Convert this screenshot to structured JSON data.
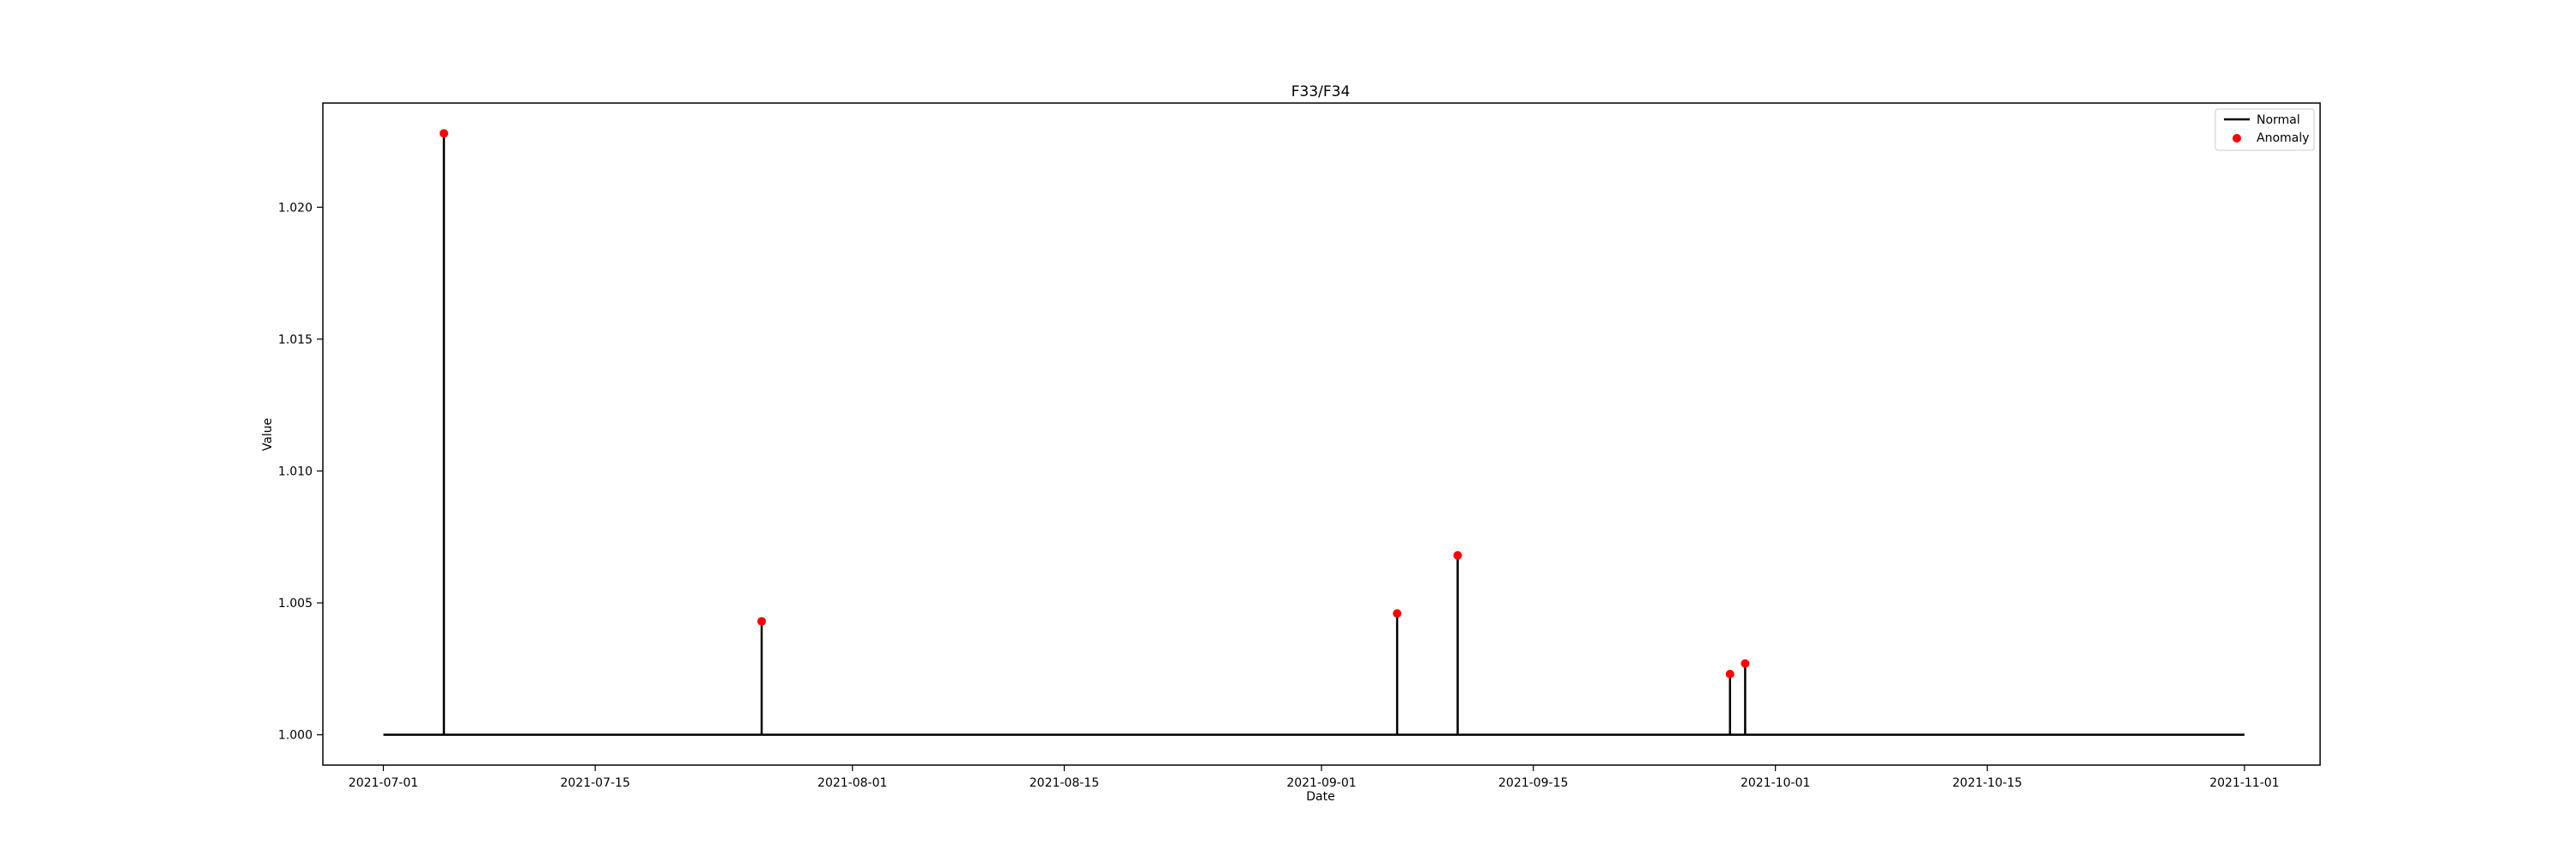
{
  "chart_data": {
    "type": "line",
    "title": "F33/F34",
    "xlabel": "Date",
    "ylabel": "Value",
    "x_range": [
      "2021-06-27",
      "2021-11-06"
    ],
    "ylim": [
      0.99885,
      1.02395
    ],
    "x_ticks": [
      "2021-07-01",
      "2021-07-15",
      "2021-08-01",
      "2021-08-15",
      "2021-09-01",
      "2021-09-15",
      "2021-10-01",
      "2021-10-15",
      "2021-11-01"
    ],
    "y_ticks": [
      1.0,
      1.005,
      1.01,
      1.015,
      1.02
    ],
    "y_tick_labels": [
      "1.000",
      "1.005",
      "1.010",
      "1.015",
      "1.020"
    ],
    "baseline": 1.0,
    "series": [
      {
        "name": "Normal",
        "kind": "line",
        "color": "#000000",
        "points": [
          {
            "x": "2021-07-01",
            "y": 1.0
          },
          {
            "x": "2021-07-05",
            "y": 1.0
          },
          {
            "x": "2021-07-05",
            "y": 1.0228
          },
          {
            "x": "2021-07-05",
            "y": 1.0
          },
          {
            "x": "2021-07-26",
            "y": 1.0
          },
          {
            "x": "2021-07-26",
            "y": 1.0043
          },
          {
            "x": "2021-07-26",
            "y": 1.0
          },
          {
            "x": "2021-09-06",
            "y": 1.0
          },
          {
            "x": "2021-09-06",
            "y": 1.0046
          },
          {
            "x": "2021-09-06",
            "y": 1.0
          },
          {
            "x": "2021-09-10",
            "y": 1.0
          },
          {
            "x": "2021-09-10",
            "y": 1.0068
          },
          {
            "x": "2021-09-10",
            "y": 1.0
          },
          {
            "x": "2021-09-28",
            "y": 1.0
          },
          {
            "x": "2021-09-28",
            "y": 1.0023
          },
          {
            "x": "2021-09-28",
            "y": 1.0
          },
          {
            "x": "2021-09-29",
            "y": 1.0
          },
          {
            "x": "2021-09-29",
            "y": 1.0027
          },
          {
            "x": "2021-09-29",
            "y": 1.0
          },
          {
            "x": "2021-11-01",
            "y": 1.0
          }
        ]
      },
      {
        "name": "Anomaly",
        "kind": "scatter",
        "color": "#ff0000",
        "points": [
          {
            "x": "2021-07-05",
            "y": 1.0228
          },
          {
            "x": "2021-07-26",
            "y": 1.0043
          },
          {
            "x": "2021-09-06",
            "y": 1.0046
          },
          {
            "x": "2021-09-10",
            "y": 1.0068
          },
          {
            "x": "2021-09-28",
            "y": 1.0023
          },
          {
            "x": "2021-09-29",
            "y": 1.0027
          }
        ]
      }
    ],
    "legend": {
      "position": "upper-right",
      "entries": [
        {
          "label": "Normal",
          "marker": "line",
          "color": "#000000"
        },
        {
          "label": "Anomaly",
          "marker": "dot",
          "color": "#ff0000"
        }
      ]
    },
    "grid": false
  }
}
